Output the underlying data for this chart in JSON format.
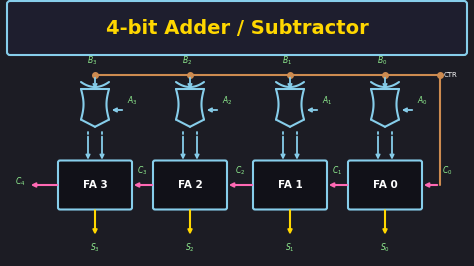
{
  "background_color": "#1c1c24",
  "title": "4-bit Adder / Subtractor",
  "title_color": "#FFD700",
  "title_box_color": "#87CEEB",
  "title_box_fill": "#1e1e2e",
  "fa_labels": [
    "FA 3",
    "FA 2",
    "FA 1",
    "FA 0"
  ],
  "fa_color": "#87CEEB",
  "fa_fill": "#111118",
  "xor_color": "#87CEEB",
  "wire_b_color": "#CD8B50",
  "wire_a_color": "#87CEEB",
  "wire_s_color": "#FFD700",
  "carry_color": "#FF69B4",
  "label_color": "#90EE90",
  "ctr_color": "white",
  "fa_text_color": "white",
  "b_labels": [
    "B3",
    "B2",
    "B1",
    "B0"
  ],
  "a_labels": [
    "A3",
    "A2",
    "A1",
    "A0"
  ],
  "s_labels": [
    "S3",
    "S2",
    "S1",
    "S0"
  ],
  "c_labels": [
    "C4",
    "C3",
    "C2",
    "C1",
    "C0"
  ]
}
